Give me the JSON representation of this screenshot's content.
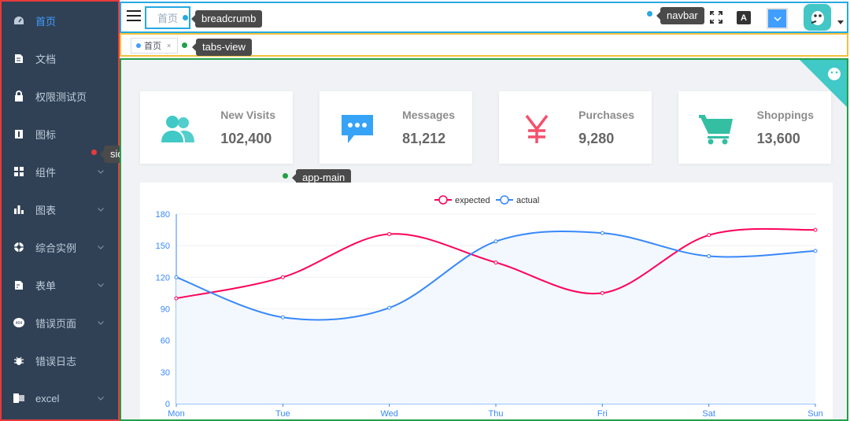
{
  "sidebar": {
    "items": [
      {
        "label": "首页",
        "icon": "dashboard-icon",
        "active": true,
        "has_children": false
      },
      {
        "label": "文档",
        "icon": "documentation-icon",
        "active": false,
        "has_children": false
      },
      {
        "label": "权限测试页",
        "icon": "lock-icon",
        "active": false,
        "has_children": false
      },
      {
        "label": "图标",
        "icon": "icon-icon",
        "active": false,
        "has_children": false
      },
      {
        "label": "组件",
        "icon": "component-icon",
        "active": false,
        "has_children": true
      },
      {
        "label": "图表",
        "icon": "chart-icon",
        "active": false,
        "has_children": true
      },
      {
        "label": "综合实例",
        "icon": "example-icon",
        "active": false,
        "has_children": true
      },
      {
        "label": "表单",
        "icon": "form-icon",
        "active": false,
        "has_children": true
      },
      {
        "label": "错误页面",
        "icon": "404-icon",
        "active": false,
        "has_children": true
      },
      {
        "label": "错误日志",
        "icon": "bug-icon",
        "active": false,
        "has_children": false
      },
      {
        "label": "excel",
        "icon": "excel-icon",
        "active": false,
        "has_children": true
      }
    ]
  },
  "annotations": {
    "sidebar": "sidebar",
    "navbar": "navbar",
    "breadcrumb": "breadcrumb",
    "tabs_view": "tabs-view",
    "app_main": "app-main"
  },
  "navbar": {
    "breadcrumb": "首页",
    "size_label": "A"
  },
  "tabs": [
    {
      "label": "首页",
      "close": "×"
    }
  ],
  "panels": [
    {
      "title": "New Visits",
      "value": "102,400",
      "icon": "peoples-icon",
      "color": "#40c9c6"
    },
    {
      "title": "Messages",
      "value": "81,212",
      "icon": "message-icon",
      "color": "#36a3f7"
    },
    {
      "title": "Purchases",
      "value": "9,280",
      "icon": "money-icon",
      "color": "#f4516c"
    },
    {
      "title": "Shoppings",
      "value": "13,600",
      "icon": "shopping-icon",
      "color": "#34bfa3"
    }
  ],
  "colors": {
    "sidebar_bg": "#304156",
    "active": "#409eff",
    "expected": "#ff005a",
    "actual": "#3888fa"
  },
  "chart_data": {
    "type": "line",
    "categories": [
      "Mon",
      "Tue",
      "Wed",
      "Thu",
      "Fri",
      "Sat",
      "Sun"
    ],
    "series": [
      {
        "name": "expected",
        "values": [
          100,
          120,
          161,
          134,
          105,
          160,
          165
        ]
      },
      {
        "name": "actual",
        "values": [
          120,
          82,
          91,
          154,
          162,
          140,
          145
        ]
      }
    ],
    "yticks": [
      "0",
      "30",
      "60",
      "90",
      "120",
      "150",
      "180"
    ],
    "ylim": [
      0,
      180
    ],
    "legend": "top-center",
    "grid": true
  }
}
